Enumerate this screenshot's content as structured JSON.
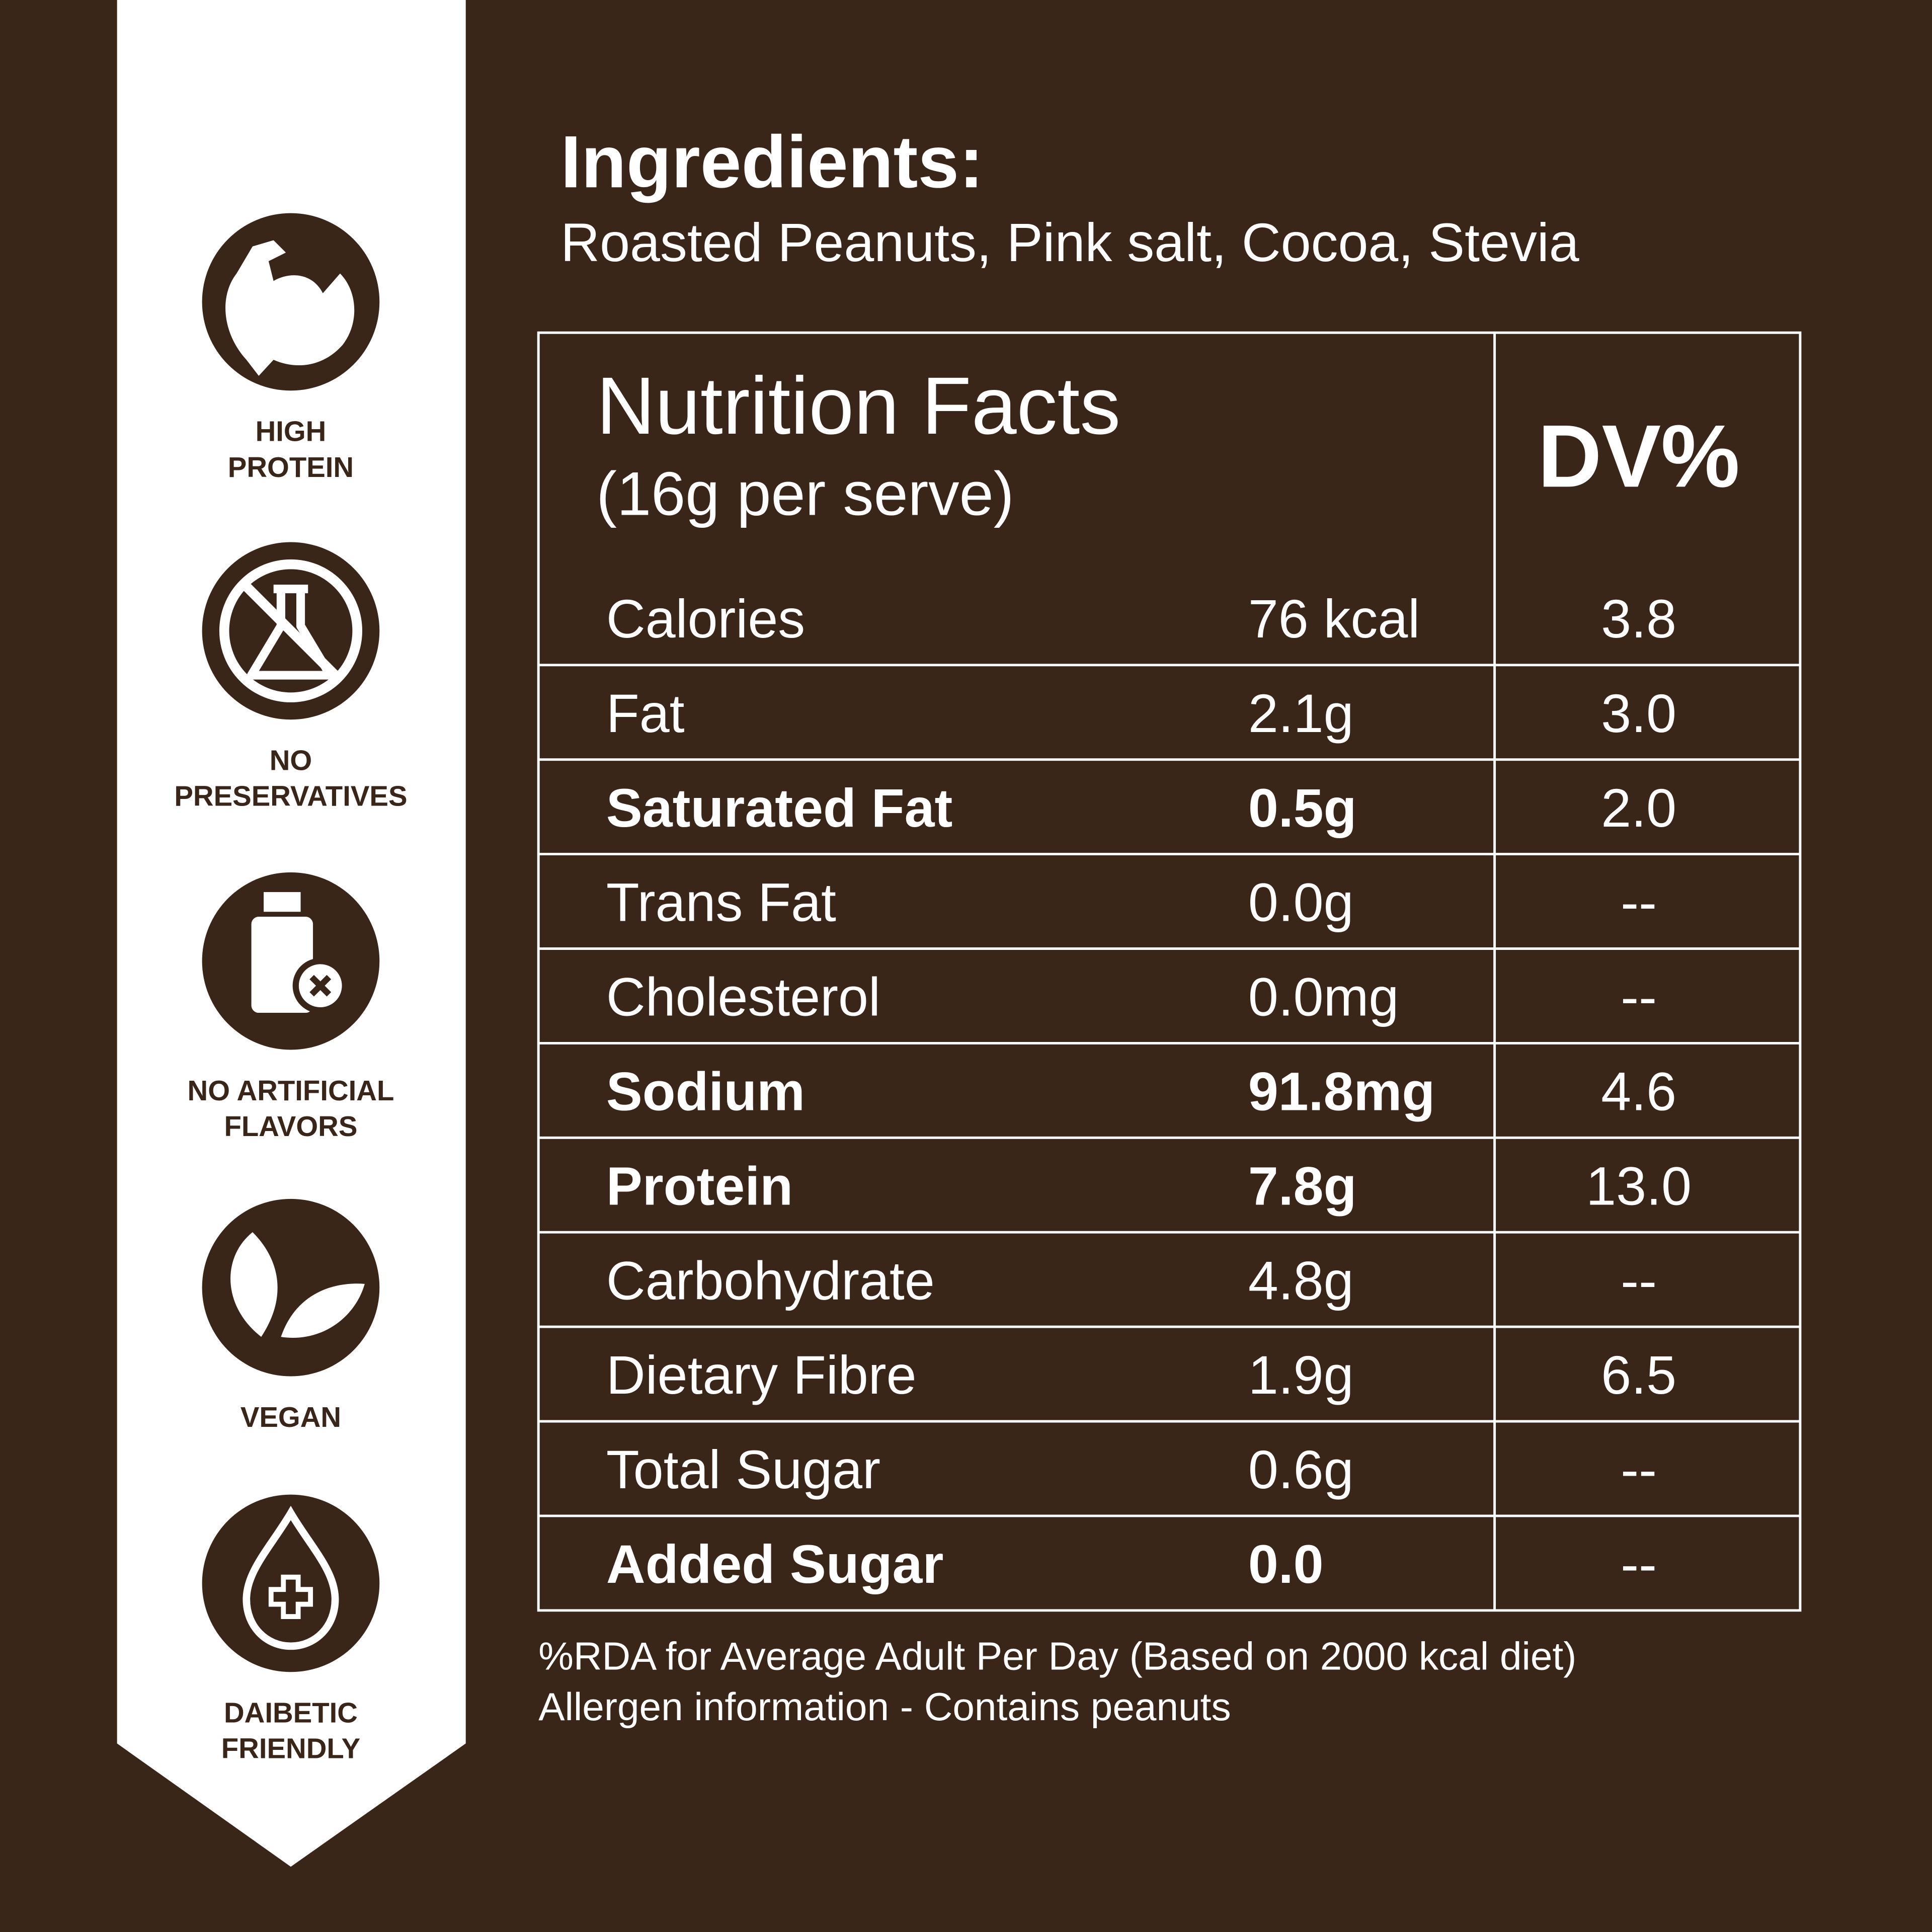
{
  "badges": [
    {
      "label": [
        "HIGH",
        "PROTEIN"
      ]
    },
    {
      "label": [
        "NO",
        "PRESERVATIVES"
      ]
    },
    {
      "label": [
        "NO ARTIFICIAL",
        "FLAVORS"
      ]
    },
    {
      "label": [
        "VEGAN"
      ]
    },
    {
      "label": [
        "DAIBETIC",
        "FRIENDLY"
      ]
    }
  ],
  "ingredients": {
    "title": "Ingredients:",
    "text": "Roasted Peanuts, Pink salt, Cocoa, Stevia"
  },
  "table": {
    "title": "Nutrition Facts",
    "serving": "(16g per serve)",
    "dv_header": "DV%",
    "rows": [
      {
        "name": "Calories",
        "amount": "76 kcal",
        "dv": "3.8",
        "bold": false
      },
      {
        "name": "Fat",
        "amount": "2.1g",
        "dv": "3.0",
        "bold": false
      },
      {
        "name": "Saturated Fat",
        "amount": "0.5g",
        "dv": "2.0",
        "bold": true
      },
      {
        "name": "Trans Fat",
        "amount": "0.0g",
        "dv": "--",
        "bold": false
      },
      {
        "name": "Cholesterol",
        "amount": "0.0mg",
        "dv": "--",
        "bold": false
      },
      {
        "name": "Sodium",
        "amount": "91.8mg",
        "dv": "4.6",
        "bold": true
      },
      {
        "name": "Protein",
        "amount": "7.8g",
        "dv": "13.0",
        "bold": true
      },
      {
        "name": "Carbohydrate",
        "amount": "4.8g",
        "dv": "--",
        "bold": false
      },
      {
        "name": "Dietary Fibre",
        "amount": "1.9g",
        "dv": "6.5",
        "bold": false
      },
      {
        "name": "Total Sugar",
        "amount": "0.6g",
        "dv": "--",
        "bold": false
      },
      {
        "name": "Added Sugar",
        "amount": "0.0",
        "dv": "--",
        "bold": true
      }
    ]
  },
  "footnotes": [
    "%RDA for Average Adult Per Day (Based on 2000 kcal diet)",
    "Allergen information - Contains peanuts"
  ]
}
